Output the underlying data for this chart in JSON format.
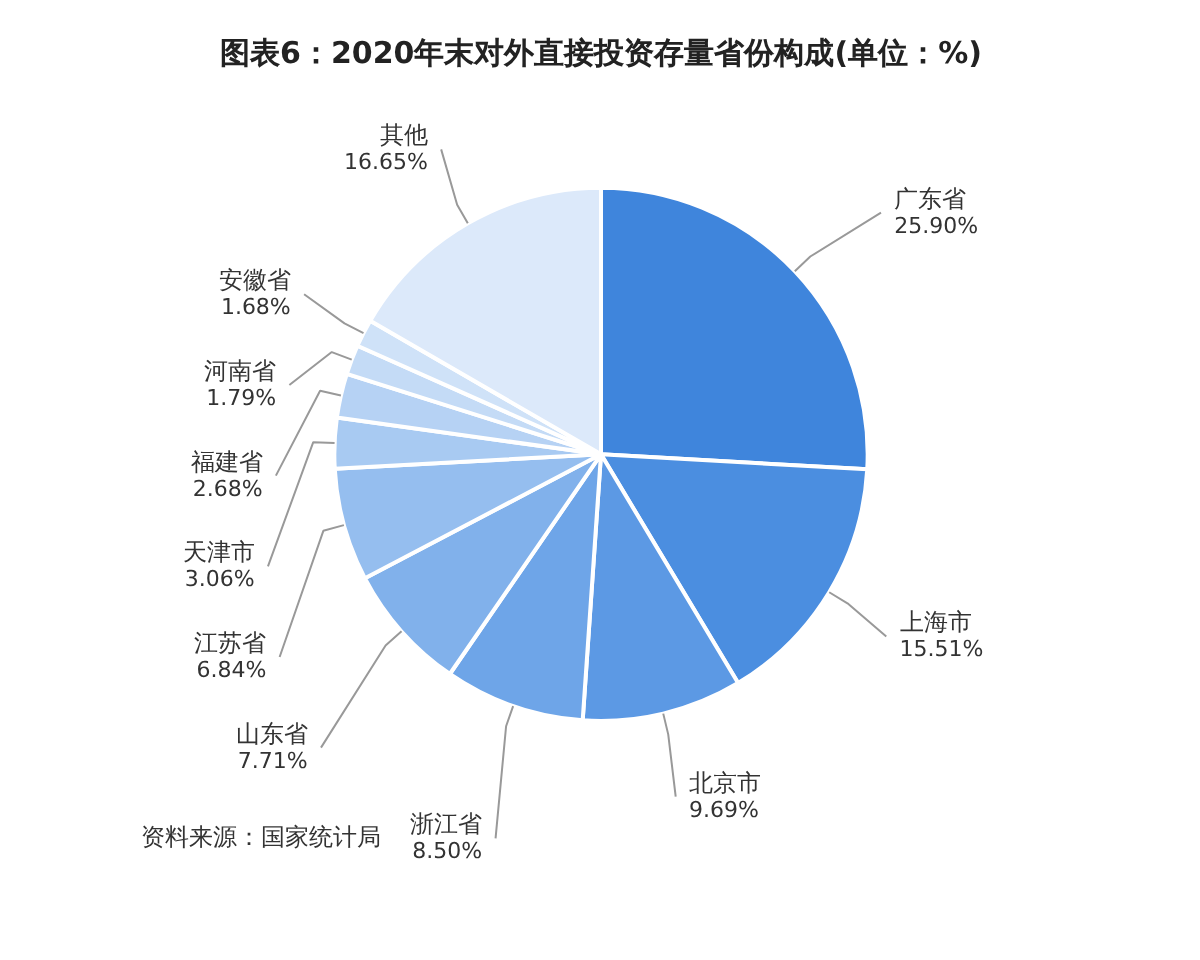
{
  "chart_data": {
    "type": "pie",
    "title": "图表6：2020年末对外直接投资存量省份构成(单位：%)",
    "categories": [
      "广东省",
      "上海市",
      "北京市",
      "浙江省",
      "山东省",
      "江苏省",
      "天津市",
      "福建省",
      "河南省",
      "安徽省",
      "其他"
    ],
    "values": [
      25.9,
      15.51,
      9.69,
      8.5,
      7.71,
      6.84,
      3.06,
      2.68,
      1.79,
      1.68,
      16.65
    ],
    "colors": [
      "#3f85dc",
      "#4b8ee0",
      "#5c99e4",
      "#6ea5e8",
      "#81b1eb",
      "#95beef",
      "#a8caf2",
      "#b6d2f4",
      "#c4dbf6",
      "#cfe2f8",
      "#dce9fa"
    ],
    "value_labels": [
      "25.90%",
      "15.51%",
      "9.69%",
      "8.50%",
      "7.71%",
      "6.84%",
      "3.06%",
      "2.68%",
      "1.79%",
      "1.68%",
      "16.65%"
    ],
    "annotations": [
      "资料来源：国家统计局"
    ]
  }
}
